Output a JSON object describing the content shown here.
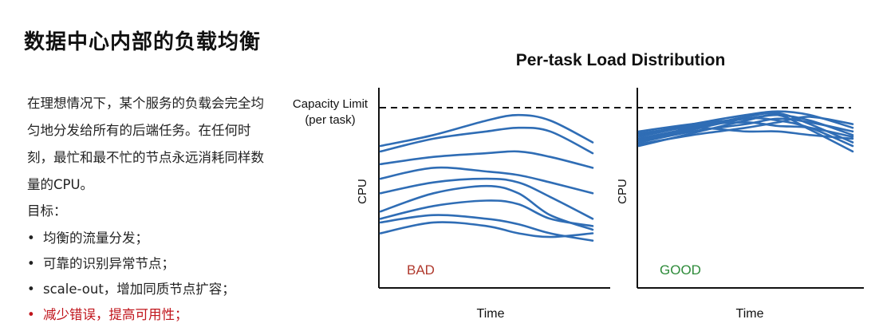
{
  "slide": {
    "title": "数据中心内部的负载均衡",
    "paragraph": "在理想情况下，某个服务的负载会完全均匀地分发给所有的后端任务。在任何时刻，最忙和最不忙的节点永远消耗同样数量的CPU。",
    "goal_label": "目标：",
    "bullets": [
      "均衡的流量分发；",
      "可靠的识别异常节点；",
      "scale-out，增加同质节点扩容；",
      "减少错误，提高可用性；"
    ]
  },
  "colors": {
    "series": "#2f6db5",
    "bad": "#b03a2e",
    "good": "#2e8b3a",
    "highlight": "#c0141b"
  },
  "chart_data": {
    "type": "line",
    "title": "Per-task Load Distribution",
    "capacity_label_line1": "Capacity Limit",
    "capacity_label_line2": "(per task)",
    "capacity_level": 1.0,
    "panels": [
      {
        "label": "BAD",
        "xlabel": "Time",
        "ylabel": "CPU",
        "ylim": [
          0,
          1.1
        ],
        "x": [
          0,
          0.25,
          0.5,
          0.65,
          0.8,
          1.0
        ],
        "series": [
          [
            0.78,
            0.84,
            0.92,
            0.95,
            0.92,
            0.8
          ],
          [
            0.75,
            0.82,
            0.86,
            0.88,
            0.86,
            0.74
          ],
          [
            0.68,
            0.72,
            0.74,
            0.75,
            0.72,
            0.66
          ],
          [
            0.6,
            0.66,
            0.64,
            0.62,
            0.58,
            0.52
          ],
          [
            0.52,
            0.58,
            0.6,
            0.58,
            0.5,
            0.38
          ],
          [
            0.42,
            0.52,
            0.56,
            0.52,
            0.4,
            0.32
          ],
          [
            0.38,
            0.45,
            0.48,
            0.46,
            0.38,
            0.34
          ],
          [
            0.36,
            0.4,
            0.38,
            0.35,
            0.3,
            0.26
          ],
          [
            0.3,
            0.36,
            0.34,
            0.3,
            0.28,
            0.3
          ]
        ]
      },
      {
        "label": "GOOD",
        "xlabel": "Time",
        "ylabel": "CPU",
        "ylim": [
          0,
          1.1
        ],
        "x": [
          0,
          0.25,
          0.5,
          0.65,
          0.8,
          1.0
        ],
        "series": [
          [
            0.84,
            0.9,
            0.95,
            0.97,
            0.95,
            0.88
          ],
          [
            0.86,
            0.9,
            0.93,
            0.95,
            0.92,
            0.84
          ],
          [
            0.82,
            0.88,
            0.94,
            0.96,
            0.9,
            0.8
          ],
          [
            0.8,
            0.86,
            0.9,
            0.93,
            0.91,
            0.86
          ],
          [
            0.83,
            0.89,
            0.91,
            0.89,
            0.88,
            0.83
          ],
          [
            0.78,
            0.85,
            0.92,
            0.95,
            0.87,
            0.75
          ],
          [
            0.85,
            0.88,
            0.86,
            0.86,
            0.84,
            0.82
          ],
          [
            0.81,
            0.87,
            0.93,
            0.92,
            0.88,
            0.78
          ],
          [
            0.79,
            0.84,
            0.88,
            0.91,
            0.94,
            0.9
          ]
        ]
      }
    ]
  }
}
